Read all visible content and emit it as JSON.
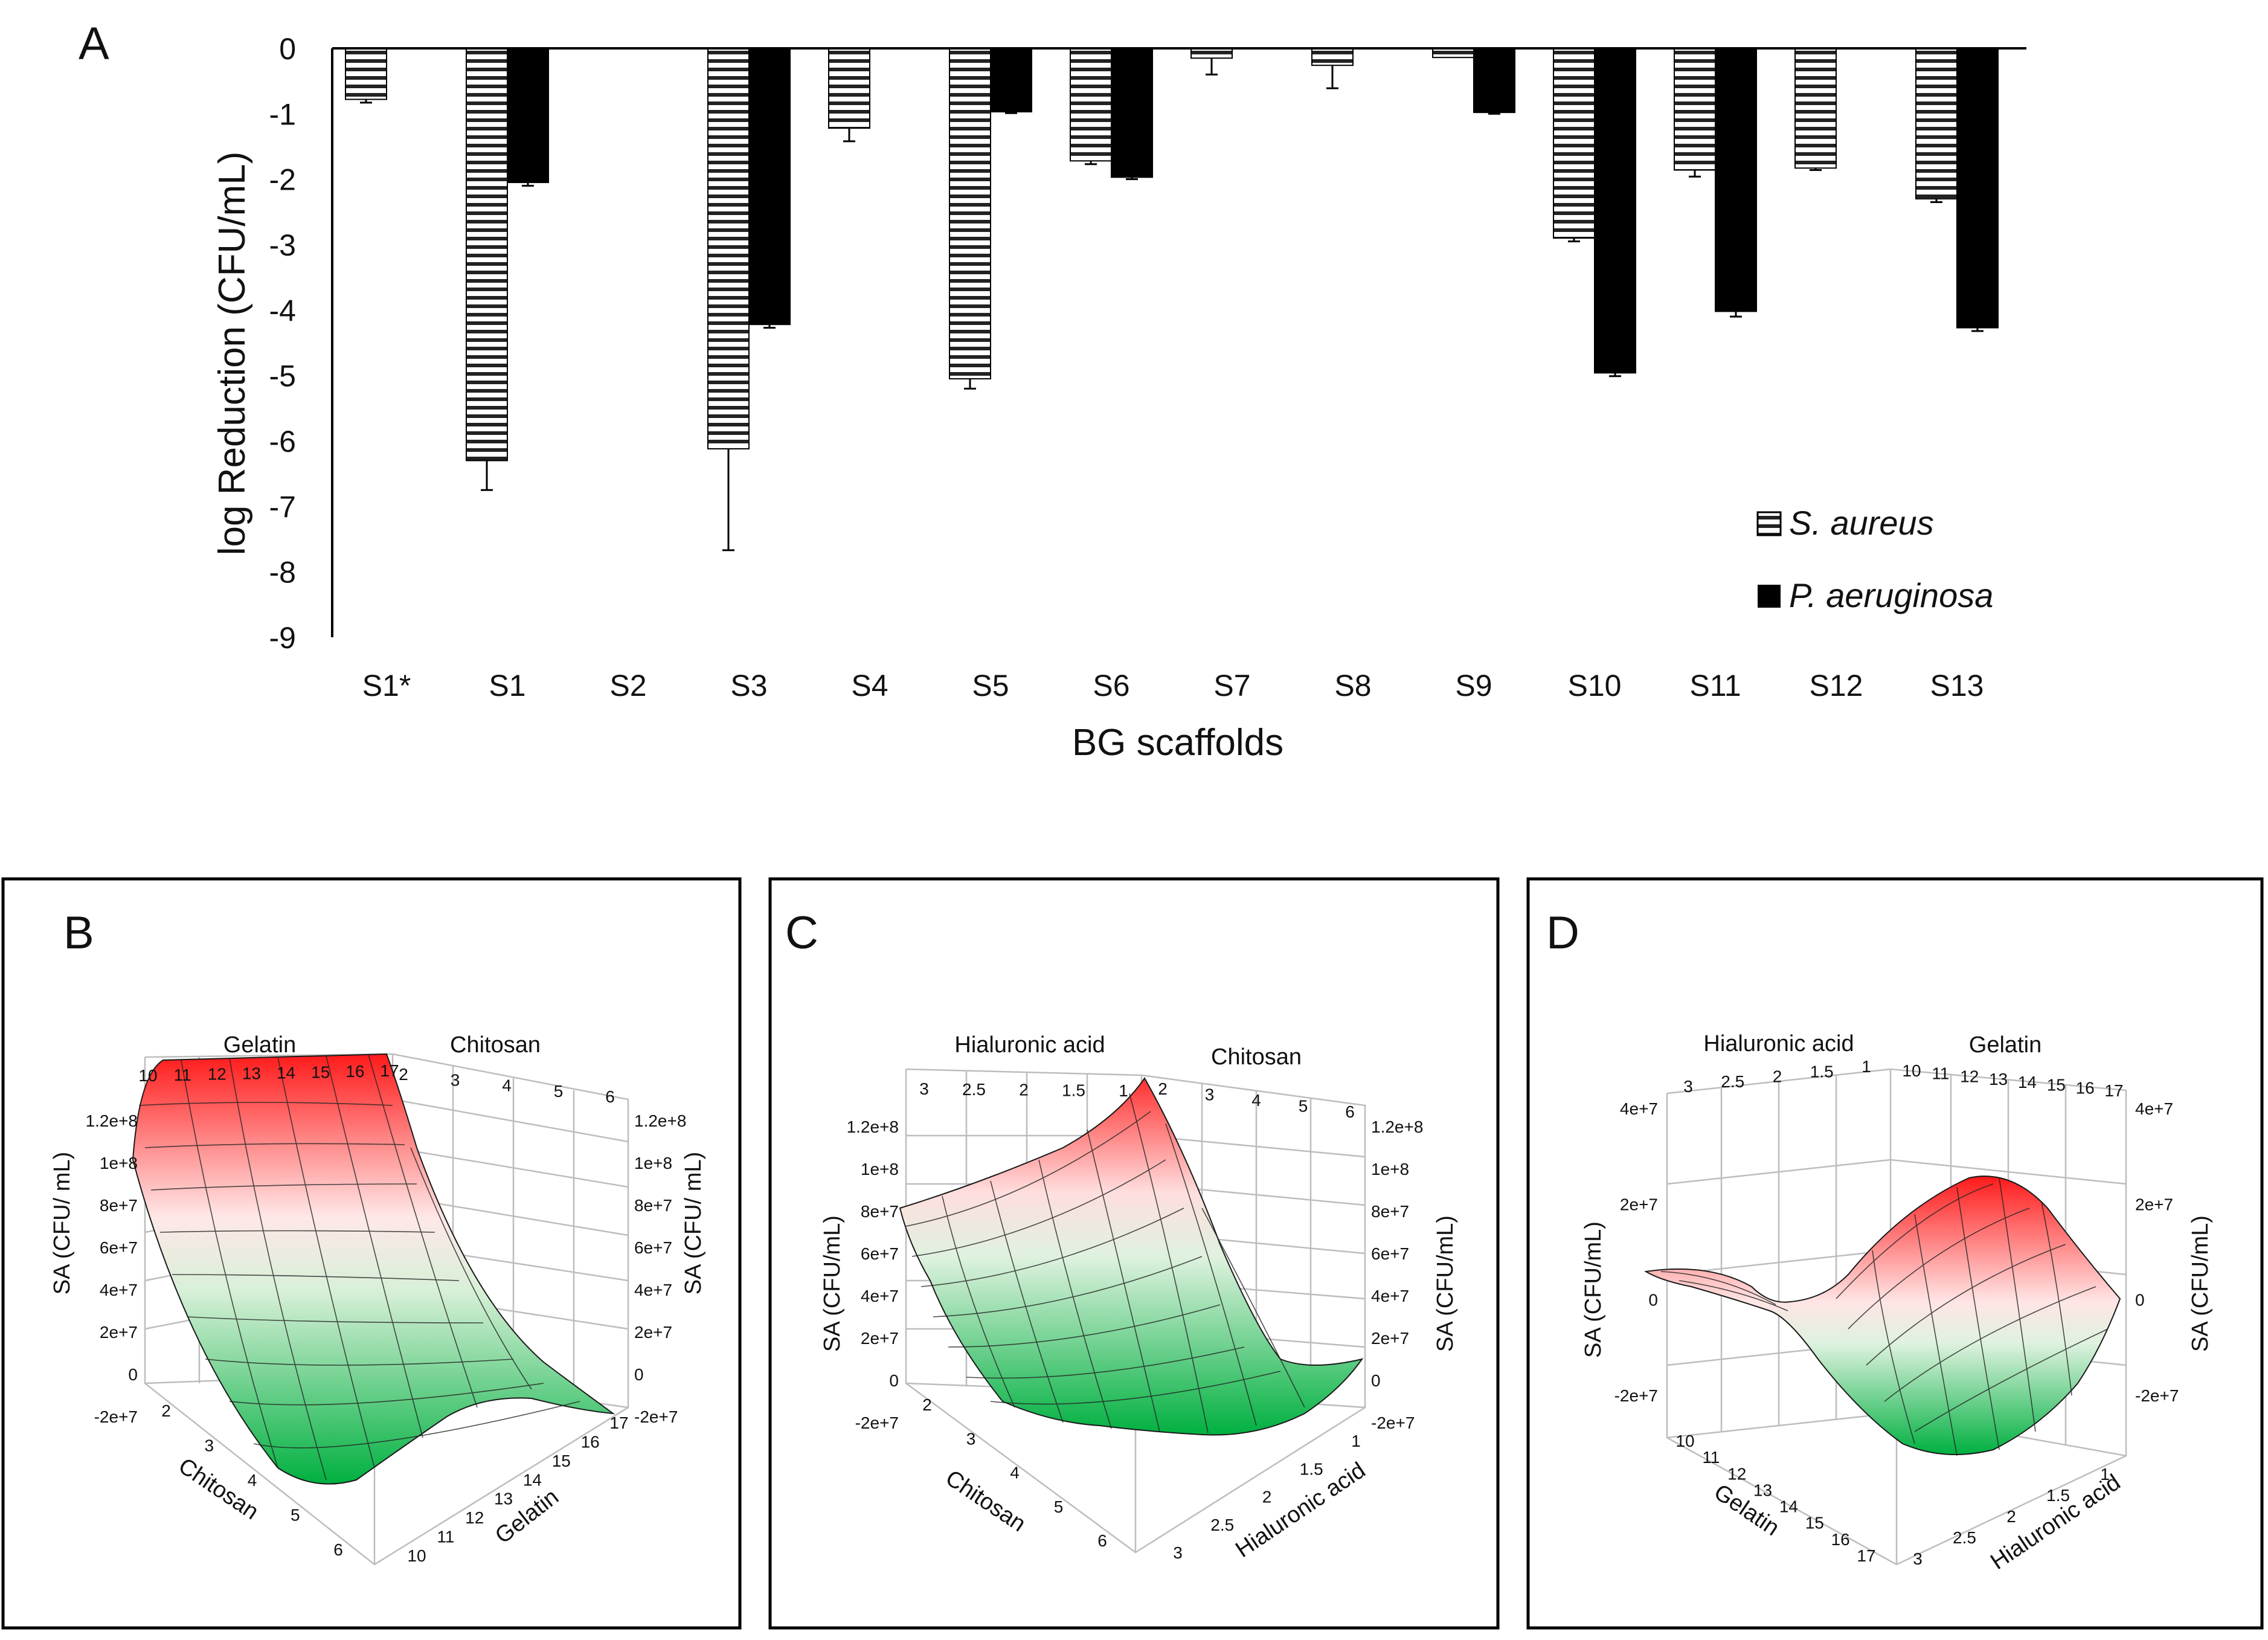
{
  "chart_data": [
    {
      "type": "bar",
      "panel_label": "A",
      "xlabel": "BG scaffolds",
      "ylabel": "log Reduction (CFU/mL)",
      "ylim": [
        -9,
        0
      ],
      "yticks": [
        "0",
        "-1",
        "-2",
        "-3",
        "-4",
        "-5",
        "-6",
        "-7",
        "-8",
        "-9"
      ],
      "categories": [
        "S1*",
        "S1",
        "S2",
        "S3",
        "S4",
        "S5",
        "S6",
        "S7",
        "S8",
        "S9",
        "S10",
        "S11",
        "S12",
        "S13"
      ],
      "series": [
        {
          "name": "S. aureus",
          "pattern": "horizontal-stripes",
          "values": [
            -0.78,
            -6.3,
            0,
            -6.12,
            -1.22,
            -5.05,
            -1.72,
            -0.15,
            -0.26,
            -0.14,
            -2.9,
            -1.86,
            -1.83,
            -2.3
          ],
          "errors": [
            0.05,
            0.45,
            0,
            1.55,
            0.2,
            0.15,
            0.05,
            0.25,
            0.35,
            0,
            0.05,
            0.1,
            0.03,
            0.05
          ]
        },
        {
          "name": "P. aeruginosa",
          "pattern": "solid",
          "color": "#000000",
          "values": [
            null,
            -2.05,
            null,
            -4.22,
            null,
            -0.97,
            -1.97,
            null,
            null,
            -0.98,
            -4.96,
            -4.02,
            null,
            -4.27
          ],
          "errors": [
            null,
            0.05,
            null,
            0.05,
            null,
            0.02,
            0.03,
            null,
            null,
            0.02,
            0.05,
            0.08,
            null,
            0.05
          ]
        }
      ]
    },
    {
      "type": "surface",
      "panel_label": "B",
      "axis_back_left": "Gelatin",
      "axis_back_right": "Chitosan",
      "axis_front_left": "Chitosan",
      "axis_front_right": "Gelatin",
      "zlabel": "SA (CFU/ mL)",
      "back_left_ticks": [
        "10",
        "11",
        "12",
        "13",
        "14",
        "15",
        "16",
        "17"
      ],
      "back_right_ticks": [
        "2",
        "3",
        "4",
        "5",
        "6"
      ],
      "front_left_ticks": [
        "2",
        "3",
        "4",
        "5",
        "6"
      ],
      "front_right_ticks": [
        "10",
        "11",
        "12",
        "13",
        "14",
        "15",
        "16",
        "17"
      ],
      "z_ticks": [
        "1.2e+8",
        "1e+8",
        "8e+7",
        "6e+7",
        "4e+7",
        "2e+7",
        "0",
        "-2e+7"
      ]
    },
    {
      "type": "surface",
      "panel_label": "C",
      "axis_back_left": "Hialuronic acid",
      "axis_back_right": "Chitosan",
      "axis_front_left": "Chitosan",
      "axis_front_right": "Hialuronic acid",
      "zlabel": "SA (CFU/mL)",
      "back_left_ticks": [
        "3",
        "2.5",
        "2",
        "1.5",
        "1"
      ],
      "back_right_ticks": [
        "2",
        "3",
        "4",
        "5",
        "6"
      ],
      "front_left_ticks": [
        "2",
        "3",
        "4",
        "5",
        "6"
      ],
      "front_right_ticks": [
        "1",
        "1.5",
        "2",
        "2.5",
        "3"
      ],
      "z_ticks": [
        "1.2e+8",
        "1e+8",
        "8e+7",
        "6e+7",
        "4e+7",
        "2e+7",
        "0",
        "-2e+7"
      ]
    },
    {
      "type": "surface",
      "panel_label": "D",
      "axis_back_left": "Hialuronic acid",
      "axis_back_right": "Gelatin",
      "axis_front_left": "Gelatin",
      "axis_front_right": "Hialuronic acid",
      "zlabel": "SA (CFU/mL)",
      "back_left_ticks": [
        "3",
        "2.5",
        "2",
        "1.5",
        "1"
      ],
      "back_right_ticks": [
        "10",
        "11",
        "12",
        "13",
        "14",
        "15",
        "16",
        "17"
      ],
      "front_left_ticks": [
        "10",
        "11",
        "12",
        "13",
        "14",
        "15",
        "16",
        "17"
      ],
      "front_right_ticks": [
        "1",
        "1.5",
        "2",
        "2.5",
        "3"
      ],
      "z_ticks": [
        "4e+7",
        "2e+7",
        "0",
        "-2e+7"
      ]
    }
  ]
}
